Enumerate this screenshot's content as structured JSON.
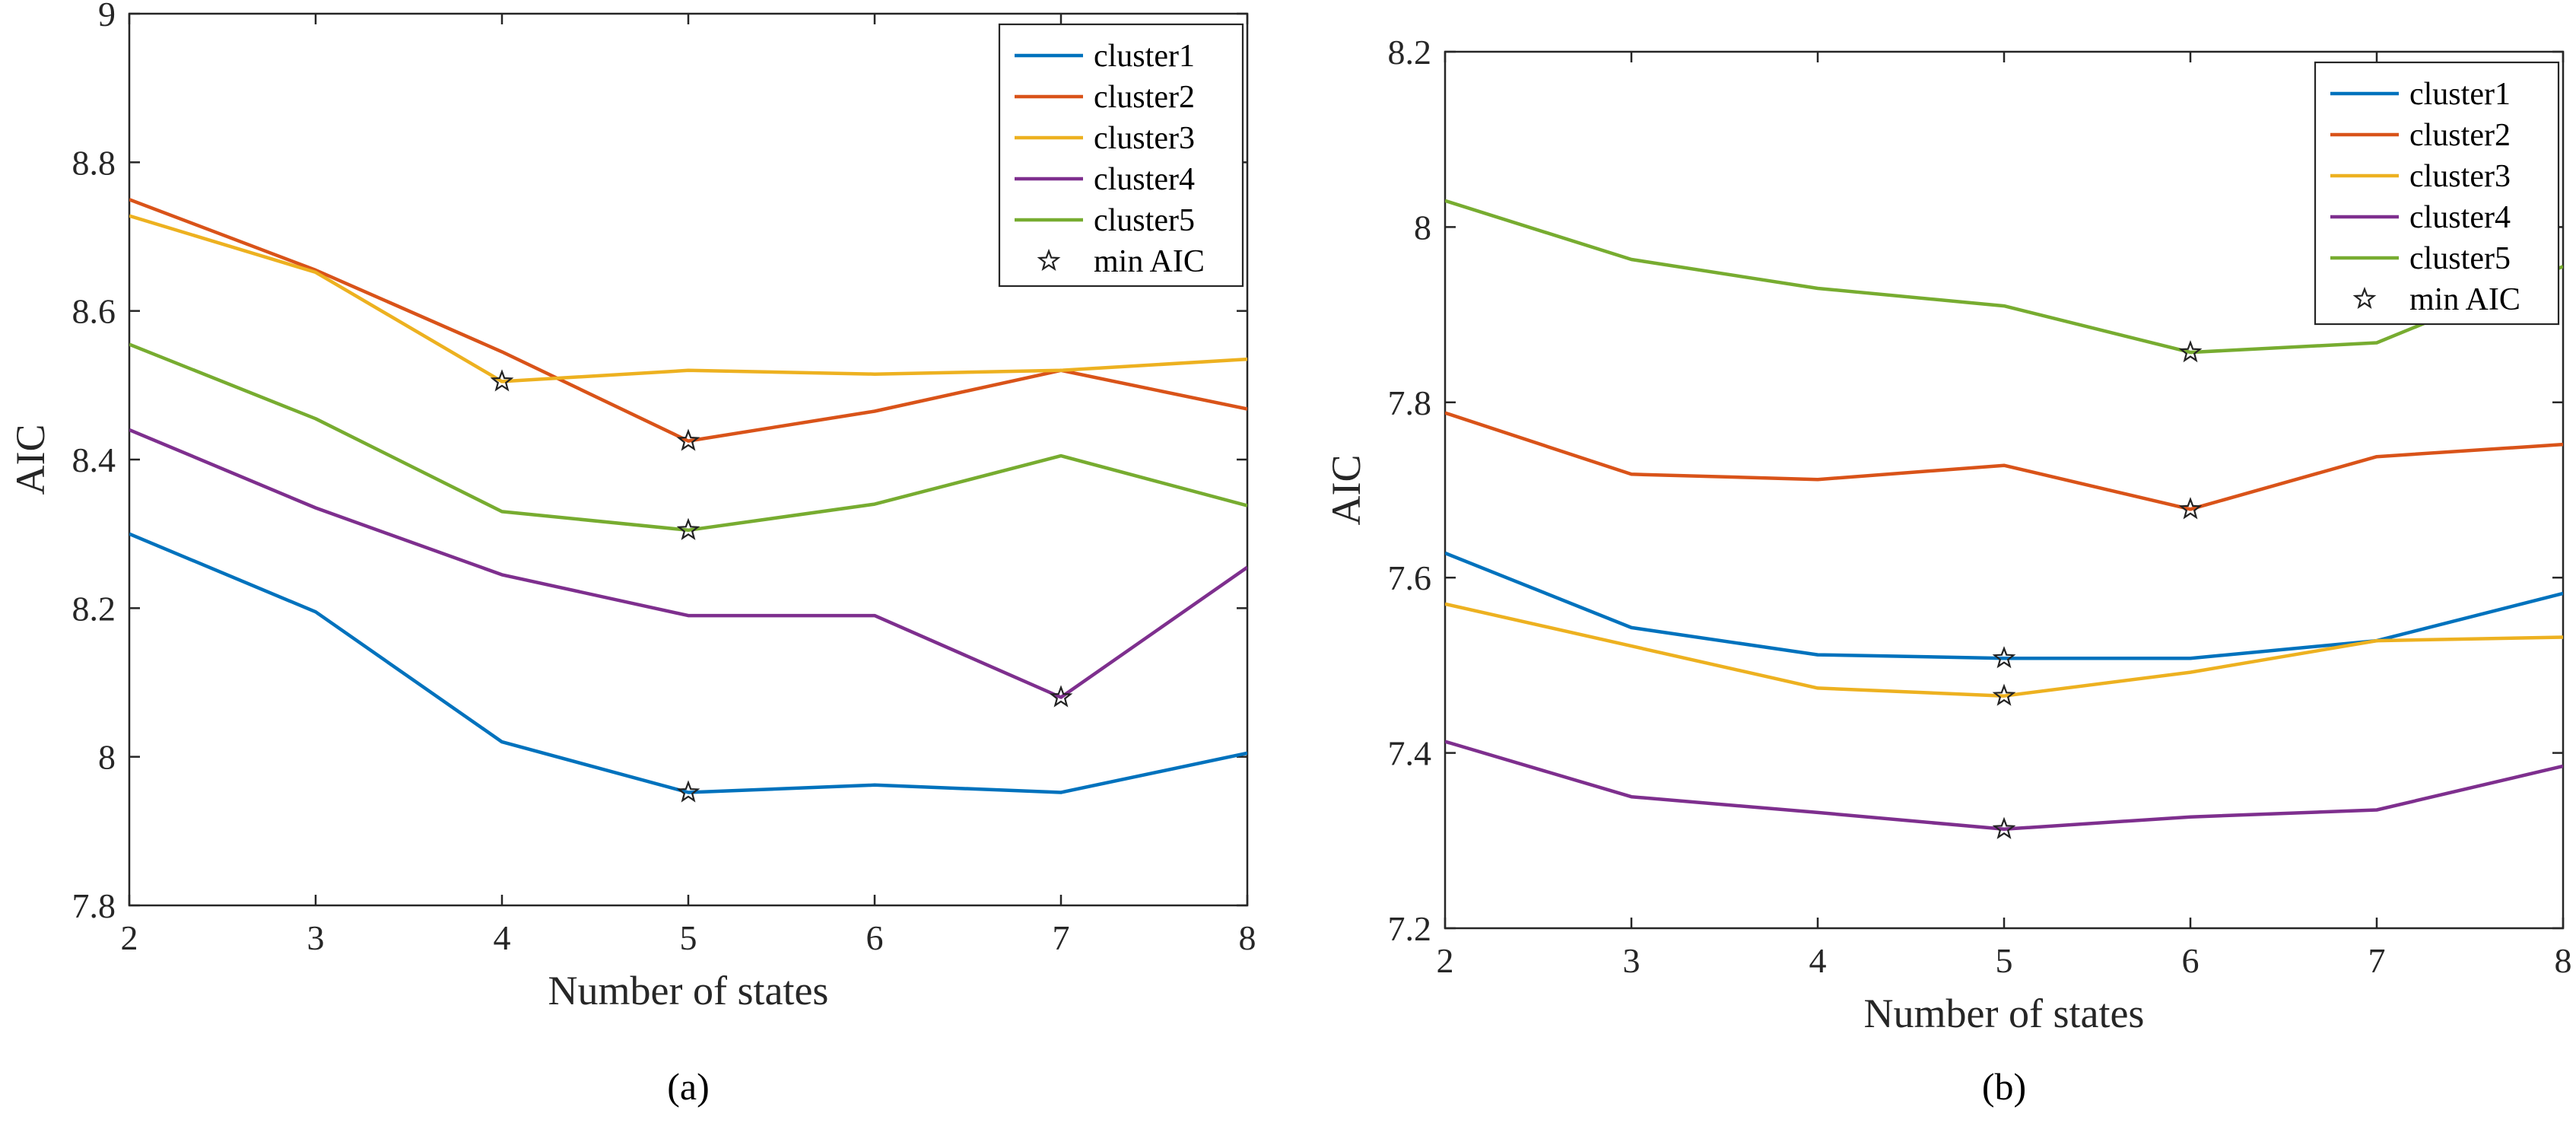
{
  "chart_data": [
    {
      "type": "line",
      "caption": "(a)",
      "xlabel": "Number of states",
      "ylabel": "AIC",
      "x": [
        2,
        3,
        4,
        5,
        6,
        7,
        8
      ],
      "xlim": [
        2,
        8
      ],
      "ylim": [
        7.8,
        9
      ],
      "xticks": [
        "2",
        "3",
        "4",
        "5",
        "6",
        "7",
        "8"
      ],
      "yticks": [
        "7.8",
        "8",
        "8.2",
        "8.4",
        "8.6",
        "8.8",
        "9"
      ],
      "ytick_values": [
        7.8,
        8.0,
        8.2,
        8.4,
        8.6,
        8.8,
        9.0
      ],
      "grid": false,
      "legend_position": "top-right",
      "series": [
        {
          "name": "cluster1",
          "color": "#0072BD",
          "values": [
            8.3,
            8.195,
            8.02,
            7.952,
            7.962,
            7.952,
            8.005
          ]
        },
        {
          "name": "cluster2",
          "color": "#D95319",
          "values": [
            8.75,
            8.655,
            8.545,
            8.425,
            8.465,
            8.52,
            8.468
          ]
        },
        {
          "name": "cluster3",
          "color": "#EDB120",
          "values": [
            8.728,
            8.652,
            8.505,
            8.52,
            8.515,
            8.52,
            8.535
          ]
        },
        {
          "name": "cluster4",
          "color": "#7E2F8E",
          "values": [
            8.44,
            8.335,
            8.245,
            8.19,
            8.19,
            8.08,
            8.255
          ]
        },
        {
          "name": "cluster5",
          "color": "#77AC30",
          "values": [
            8.555,
            8.455,
            8.33,
            8.305,
            8.34,
            8.405,
            8.338
          ]
        }
      ],
      "min_aic_label": "min AIC",
      "min_aic_points": [
        {
          "x": 4,
          "y": 8.505
        },
        {
          "x": 5,
          "y": 8.425
        },
        {
          "x": 5,
          "y": 8.305
        },
        {
          "x": 7,
          "y": 8.08
        },
        {
          "x": 5,
          "y": 7.952
        }
      ]
    },
    {
      "type": "line",
      "caption": "(b)",
      "xlabel": "Number of states",
      "ylabel": "AIC",
      "x": [
        2,
        3,
        4,
        5,
        6,
        7,
        8
      ],
      "xlim": [
        2,
        8
      ],
      "ylim": [
        7.2,
        8.2
      ],
      "xticks": [
        "2",
        "3",
        "4",
        "5",
        "6",
        "7",
        "8"
      ],
      "yticks": [
        "7.2",
        "7.4",
        "7.6",
        "7.8",
        "8",
        "8.2"
      ],
      "ytick_values": [
        7.2,
        7.4,
        7.6,
        7.8,
        8.0,
        8.2
      ],
      "grid": false,
      "legend_position": "top-right",
      "series": [
        {
          "name": "cluster1",
          "color": "#0072BD",
          "values": [
            7.628,
            7.543,
            7.512,
            7.508,
            7.508,
            7.528,
            7.582
          ]
        },
        {
          "name": "cluster2",
          "color": "#D95319",
          "values": [
            7.788,
            7.718,
            7.712,
            7.728,
            7.678,
            7.738,
            7.752
          ]
        },
        {
          "name": "cluster3",
          "color": "#EDB120",
          "values": [
            7.57,
            7.522,
            7.474,
            7.465,
            7.492,
            7.528,
            7.532
          ]
        },
        {
          "name": "cluster4",
          "color": "#7E2F8E",
          "values": [
            7.413,
            7.35,
            7.332,
            7.313,
            7.327,
            7.335,
            7.385
          ]
        },
        {
          "name": "cluster5",
          "color": "#77AC30",
          "values": [
            8.03,
            7.963,
            7.93,
            7.91,
            7.857,
            7.868,
            7.955
          ]
        }
      ],
      "min_aic_label": "min AIC",
      "min_aic_points": [
        {
          "x": 6,
          "y": 7.857
        },
        {
          "x": 6,
          "y": 7.678
        },
        {
          "x": 5,
          "y": 7.508
        },
        {
          "x": 5,
          "y": 7.465
        },
        {
          "x": 5,
          "y": 7.313
        }
      ]
    }
  ]
}
